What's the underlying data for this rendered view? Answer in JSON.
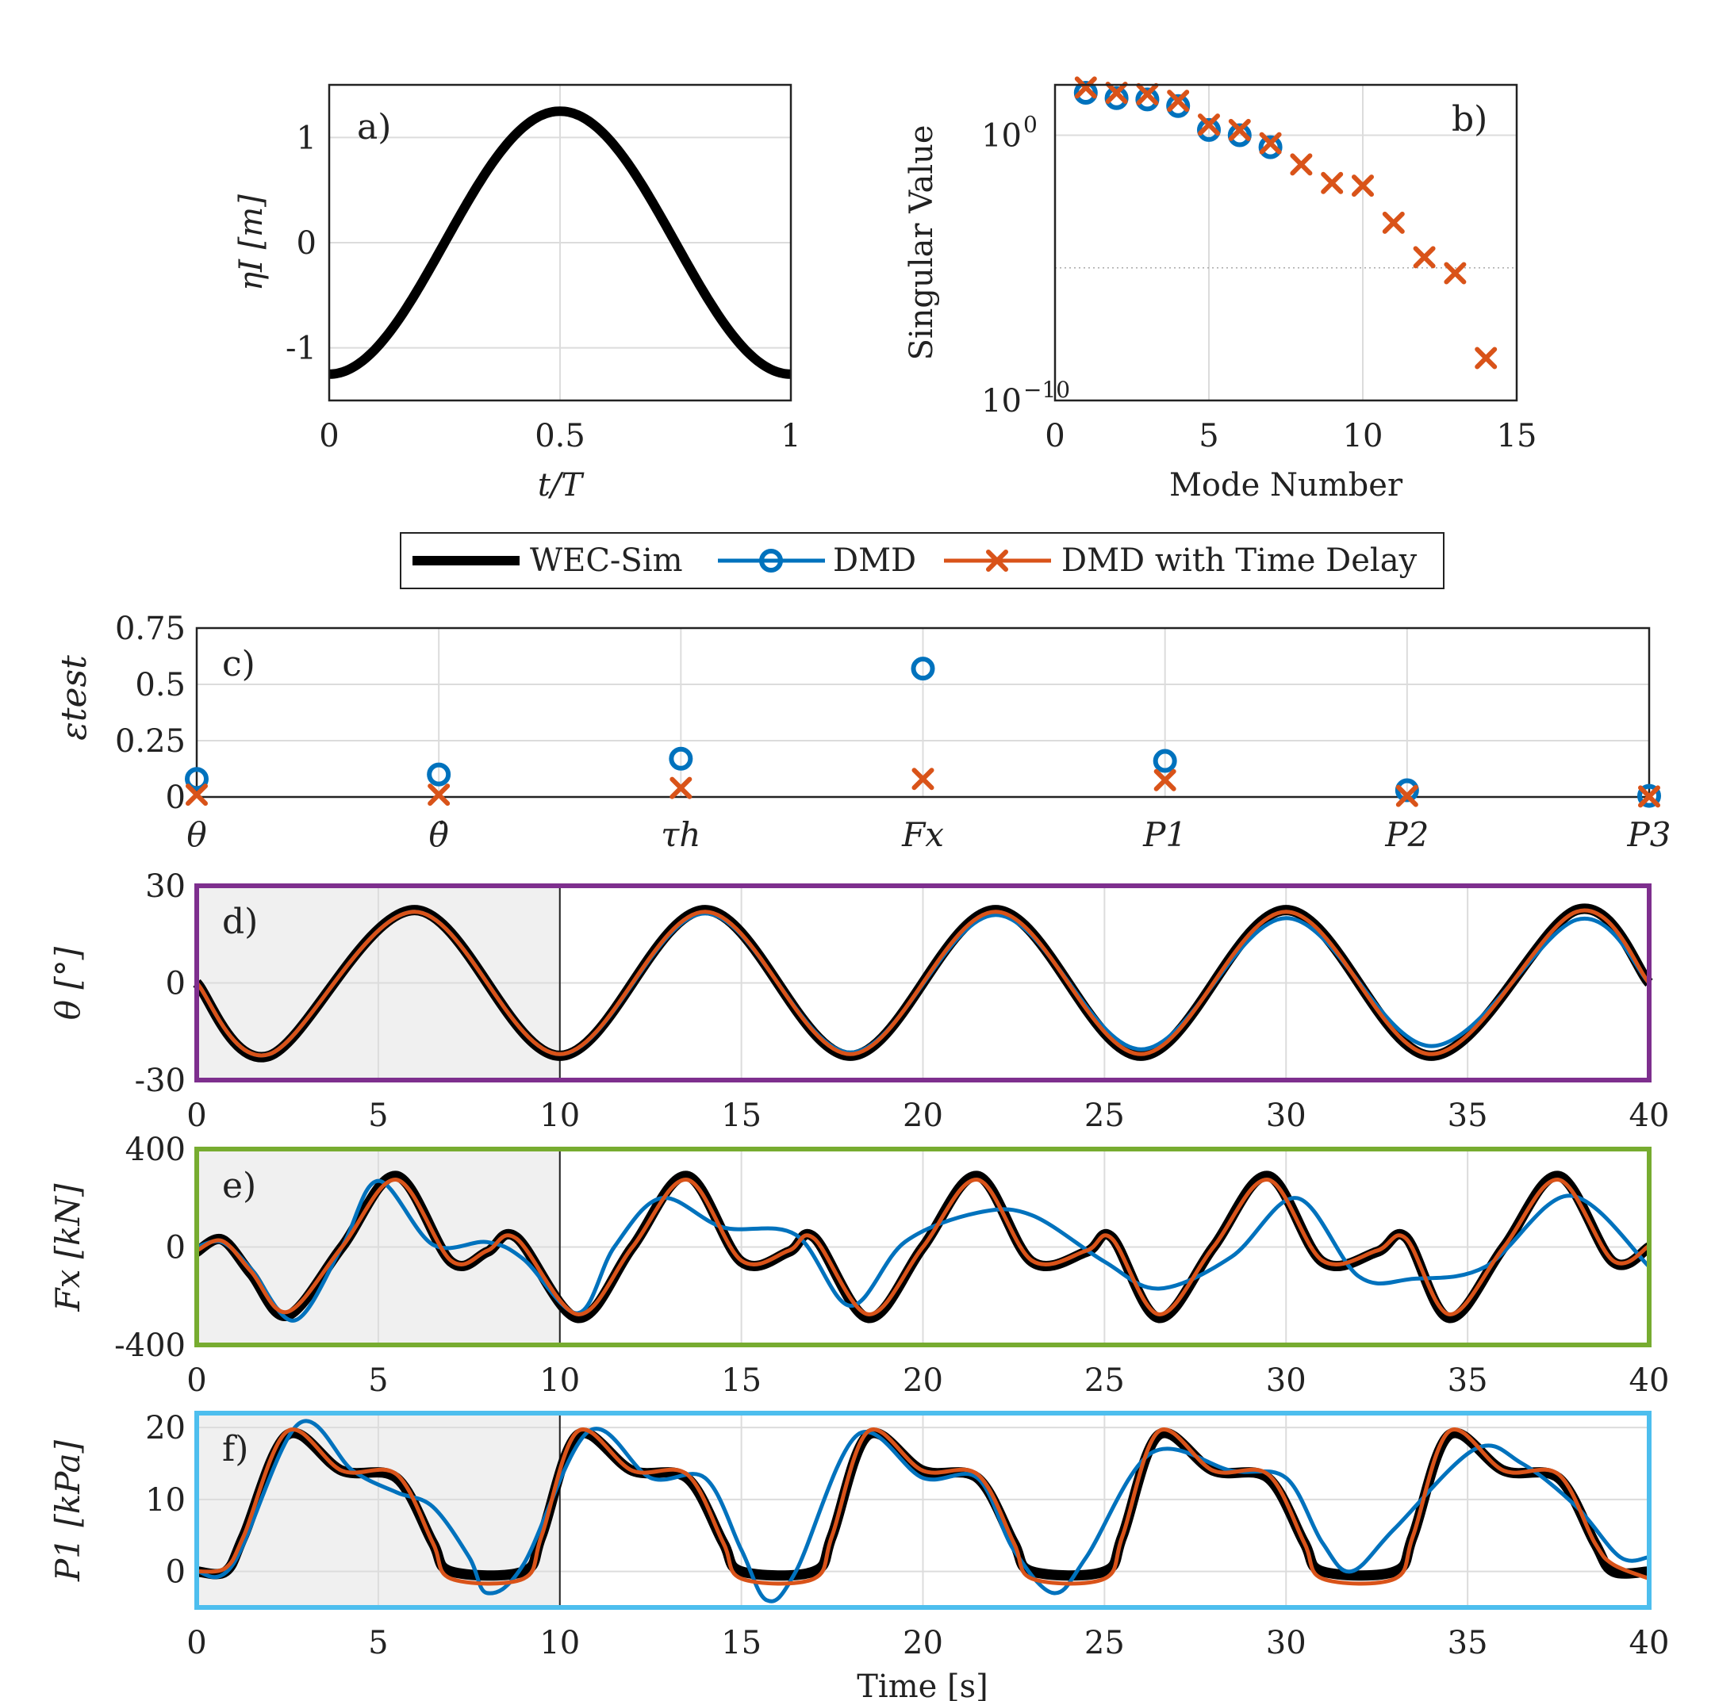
{
  "colors": {
    "wecsim": "#000000",
    "dmd": "#0072BD",
    "dmd_td": "#D95319",
    "theta": "#7E2F8E",
    "fx": "#77AC30",
    "p1": "#4DBEEE",
    "training_shade": "#f0f0f0",
    "grid": "#dcdcdc"
  },
  "legend": {
    "wecsim": "WEC-Sim",
    "dmd": "DMD",
    "dmd_td": "DMD with Time Delay"
  },
  "chart_data": [
    {
      "id": "a",
      "type": "line",
      "panel_label": "a)",
      "xlabel": "t/T",
      "ylabel": "ηI [m]",
      "xlim": [
        0,
        1
      ],
      "ylim": [
        -1.5,
        1.5
      ],
      "xticks": [
        "0",
        "0.5",
        "1"
      ],
      "yticks": [
        "1",
        "0",
        "-1"
      ],
      "series": [
        {
          "name": "ηI",
          "amplitude": 1.25,
          "function": "-A·cos(2π·t/T)"
        }
      ]
    },
    {
      "id": "b",
      "type": "scatter",
      "panel_label": "b)",
      "xlabel": "Mode Number",
      "ylabel": "Singular Value",
      "xlim": [
        0,
        15
      ],
      "yscale": "log",
      "ylim_log10": [
        -10,
        1.9
      ],
      "xticks": [
        "0",
        "5",
        "10",
        "15"
      ],
      "yticks": [
        {
          "base": "10",
          "exp": "0"
        },
        {
          "base": "10",
          "exp": "−10"
        }
      ],
      "series": [
        {
          "name": "DMD",
          "x": [
            1,
            2,
            3,
            4,
            5,
            6,
            7
          ],
          "log10_y": [
            1.6,
            1.4,
            1.35,
            1.1,
            0.2,
            0.0,
            -0.45
          ]
        },
        {
          "name": "DMD with Time Delay",
          "x": [
            1,
            2,
            3,
            4,
            5,
            6,
            7,
            8,
            9,
            10,
            11,
            12,
            13,
            14
          ],
          "log10_y": [
            1.8,
            1.6,
            1.55,
            1.3,
            0.4,
            0.2,
            -0.3,
            -1.1,
            -1.8,
            -1.9,
            -3.3,
            -4.6,
            -5.2,
            -8.4
          ]
        }
      ]
    },
    {
      "id": "c",
      "type": "scatter",
      "panel_label": "c)",
      "ylabel": "εtest",
      "ylim": [
        0,
        0.75
      ],
      "yticks": [
        "0.75",
        "0.5",
        "0.25",
        "0"
      ],
      "categories": [
        "θ",
        "θ̇",
        "τh",
        "Fx",
        "P1",
        "P2",
        "P3"
      ],
      "series": [
        {
          "name": "DMD",
          "values": [
            0.08,
            0.1,
            0.17,
            0.57,
            0.16,
            0.03,
            0.005
          ]
        },
        {
          "name": "DMD with Time Delay",
          "values": [
            0.01,
            0.01,
            0.04,
            0.08,
            0.075,
            0.005,
            0.002
          ]
        }
      ]
    },
    {
      "id": "d",
      "type": "line",
      "panel_label": "d)",
      "ylabel": "θ [°]",
      "xlim": [
        0,
        40
      ],
      "ylim": [
        -30,
        30
      ],
      "xticks": [
        "0",
        "5",
        "10",
        "15",
        "20",
        "25",
        "30",
        "35",
        "40"
      ],
      "yticks": [
        "30",
        "0",
        "-30"
      ],
      "training_window": [
        0,
        10
      ],
      "series": [
        {
          "name": "WEC-Sim",
          "t": [
            0,
            2,
            6,
            10,
            14,
            18,
            22,
            26,
            30,
            34,
            38,
            40
          ],
          "y": [
            0,
            -22.5,
            22.5,
            -22.5,
            22.5,
            -22.5,
            22.5,
            -22.5,
            22.5,
            -22.5,
            22.5,
            0
          ]
        },
        {
          "name": "DMD",
          "t": [
            0,
            2,
            6,
            10,
            14,
            18,
            22,
            26,
            30,
            34,
            38,
            40
          ],
          "y": [
            0,
            -22,
            22,
            -22,
            21.5,
            -21.5,
            21,
            -20.5,
            20,
            -19.5,
            19.5,
            0
          ]
        },
        {
          "name": "DMD with Time Delay",
          "t": [
            0,
            2,
            6,
            10,
            14,
            18,
            22,
            26,
            30,
            34,
            38,
            40
          ],
          "y": [
            0,
            -22,
            22,
            -22,
            22,
            -22,
            22,
            -22,
            22,
            -22,
            22,
            0
          ]
        }
      ]
    },
    {
      "id": "e",
      "type": "line",
      "panel_label": "e)",
      "ylabel": "Fx [kN]",
      "xlim": [
        0,
        40
      ],
      "ylim": [
        -400,
        400
      ],
      "xticks": [
        "0",
        "5",
        "10",
        "15",
        "20",
        "25",
        "30",
        "35",
        "40"
      ],
      "yticks": [
        "400",
        "0",
        "-400"
      ],
      "training_window": [
        0,
        10
      ],
      "series": [
        {
          "name": "WEC-Sim",
          "t": [
            0,
            0.7,
            1.5,
            2.5,
            4,
            5.5,
            7,
            8,
            8.8,
            10.5,
            12,
            13.5,
            15,
            16.3,
            17,
            18.5,
            20,
            21.5,
            23,
            24.5,
            25.2,
            26.5,
            28,
            29.5,
            31,
            32.5,
            33.3,
            34.5,
            36,
            37.5,
            39,
            40
          ],
          "y": [
            -20,
            30,
            -110,
            -280,
            0,
            290,
            -60,
            -20,
            40,
            -290,
            0,
            290,
            -60,
            -20,
            40,
            -290,
            0,
            290,
            -60,
            -20,
            40,
            -290,
            0,
            290,
            -60,
            -20,
            40,
            -290,
            0,
            290,
            -60,
            0
          ]
        },
        {
          "name": "DMD",
          "t": [
            0,
            0.7,
            1.5,
            2.7,
            4,
            5,
            6.5,
            8,
            9,
            10.5,
            11.5,
            12.8,
            14.5,
            16.5,
            18,
            19.5,
            21.5,
            23,
            25,
            26.5,
            28.5,
            30.3,
            32,
            33.5,
            35.5,
            37.8,
            40
          ],
          "y": [
            0,
            20,
            -90,
            -300,
            0,
            270,
            10,
            20,
            -50,
            -270,
            0,
            200,
            80,
            50,
            -240,
            20,
            140,
            130,
            -60,
            -170,
            -40,
            200,
            -120,
            -130,
            -80,
            210,
            -80
          ]
        },
        {
          "name": "DMD with Time Delay",
          "t": [
            0,
            0.7,
            1.5,
            2.5,
            4,
            5.5,
            7,
            8,
            8.8,
            10.5,
            12,
            13.5,
            15,
            16.3,
            17,
            18.5,
            20,
            21.5,
            23,
            24.5,
            25.2,
            26.5,
            28,
            29.5,
            31,
            32.5,
            33.3,
            34.5,
            36,
            37.5,
            39,
            40
          ],
          "y": [
            -15,
            25,
            -100,
            -265,
            0,
            275,
            -55,
            -15,
            35,
            -275,
            0,
            275,
            -55,
            -15,
            35,
            -275,
            0,
            275,
            -55,
            -15,
            35,
            -275,
            0,
            275,
            -55,
            -15,
            35,
            -275,
            0,
            275,
            -55,
            5
          ]
        }
      ]
    },
    {
      "id": "f",
      "type": "line",
      "panel_label": "f)",
      "ylabel": "P1 [kPa]",
      "xlim": [
        0,
        40
      ],
      "ylim": [
        -5,
        22
      ],
      "xticks": [
        "0",
        "5",
        "10",
        "15",
        "20",
        "25",
        "30",
        "35",
        "40"
      ],
      "yticks": [
        "20",
        "10",
        "0"
      ],
      "xlabel": "Time [s]",
      "training_window": [
        0,
        10
      ],
      "series": [
        {
          "name": "WEC-Sim",
          "t": [
            0,
            0.8,
            1.3,
            2.5,
            4,
            5.5,
            6.5,
            7,
            9,
            9.5,
            10.5,
            12,
            13.5,
            14.5,
            15,
            17,
            17.5,
            18.5,
            20,
            21.5,
            22.5,
            23,
            25,
            25.5,
            26.5,
            28,
            29.5,
            30.5,
            31,
            33,
            33.5,
            34.5,
            36,
            37.5,
            38.5,
            39,
            40
          ],
          "y": [
            0,
            0,
            5,
            19,
            14,
            13,
            4,
            0,
            0,
            5,
            19,
            14,
            13,
            4,
            0,
            0,
            5,
            19,
            14,
            13,
            4,
            0,
            0,
            5,
            19,
            14,
            13,
            4,
            0,
            0,
            5,
            19,
            14,
            13,
            4,
            0,
            0
          ]
        },
        {
          "name": "DMD",
          "t": [
            0,
            1,
            2.8,
            4.3,
            5.5,
            6.5,
            7.5,
            8,
            9,
            10.8,
            12.5,
            14,
            15,
            15.7,
            16.5,
            18.2,
            20,
            21.5,
            22.5,
            23.6,
            24.5,
            26.3,
            28.5,
            30,
            31,
            31.8,
            33,
            35.2,
            36.5,
            38,
            39.2,
            40
          ],
          "y": [
            0,
            1,
            20.5,
            14,
            11,
            9,
            2,
            -3,
            1,
            19.5,
            13,
            13,
            3,
            -4,
            0,
            19,
            13,
            13,
            3,
            -3,
            2,
            16.5,
            14,
            13,
            4,
            0,
            6,
            17,
            15,
            9,
            2,
            2
          ]
        },
        {
          "name": "DMD with Time Delay",
          "t": [
            0,
            0.8,
            1.3,
            2.5,
            4,
            5.5,
            6.5,
            7,
            9,
            9.5,
            10.5,
            12,
            13.5,
            14.5,
            15,
            17,
            17.5,
            18.5,
            20,
            21.5,
            22.5,
            23,
            25,
            25.5,
            26.5,
            28,
            29.5,
            30.5,
            31,
            33,
            33.5,
            34.5,
            36,
            37.5,
            38.5,
            39,
            40
          ],
          "y": [
            0,
            0.5,
            5,
            19.5,
            14,
            13.5,
            4,
            -1,
            -1,
            5,
            19.5,
            14,
            13.5,
            4,
            -1,
            -1,
            5,
            19.5,
            14,
            13.5,
            4,
            -1,
            -1,
            5,
            19.5,
            14,
            13.5,
            4,
            -1,
            -1,
            5,
            19.5,
            14,
            13.5,
            4,
            1,
            -1
          ]
        }
      ]
    }
  ]
}
